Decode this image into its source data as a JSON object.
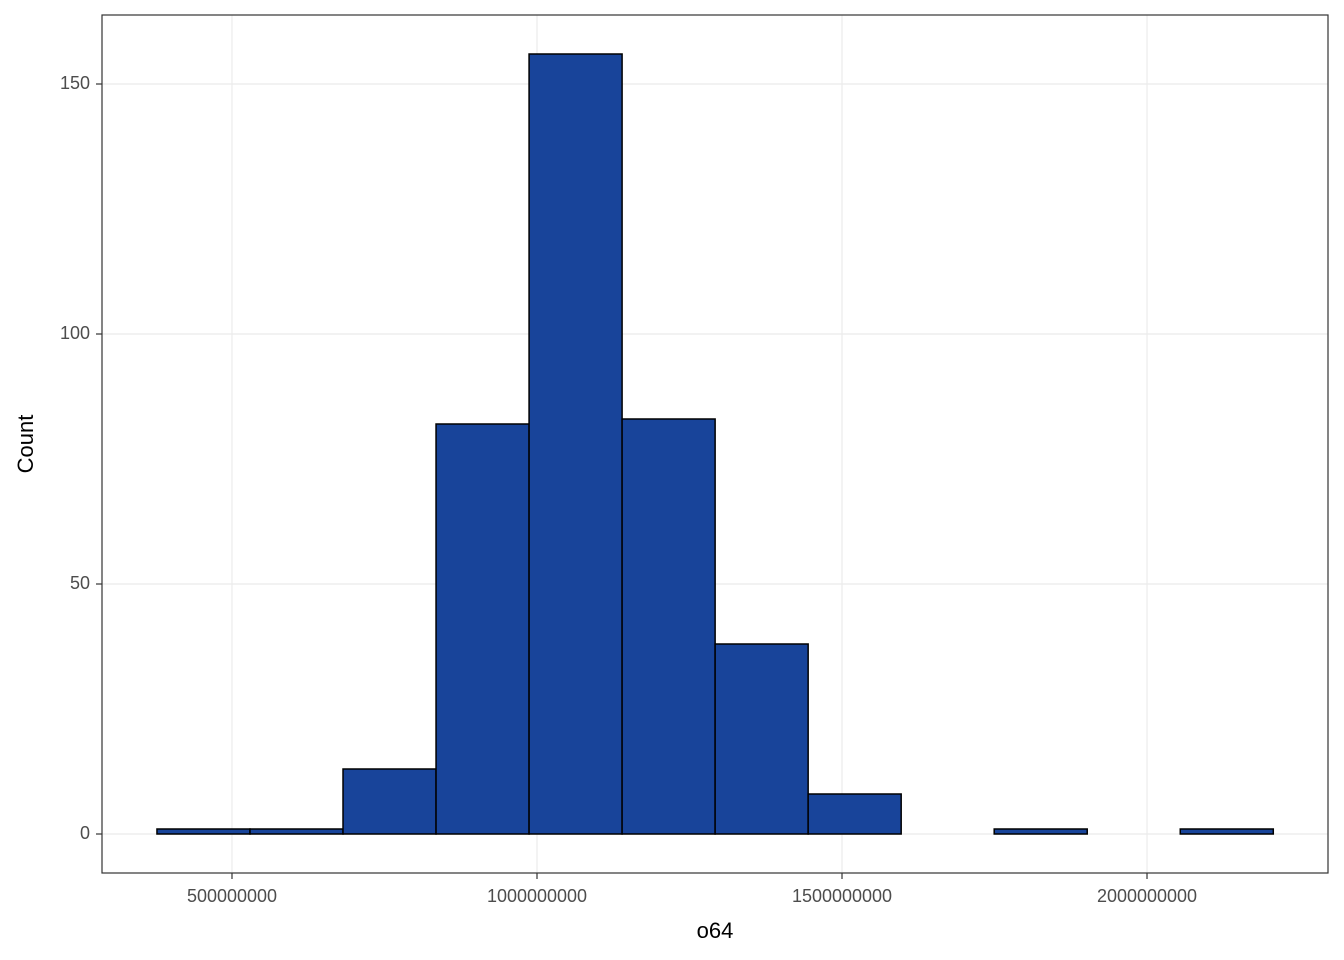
{
  "chart_data": {
    "type": "histogram",
    "x_label": "o64",
    "y_label": "Count",
    "bins": [
      377000000,
      529500000,
      682000000,
      834500000,
      987000000,
      1139500000,
      1292000000,
      1444500000,
      1597000000,
      1749500000,
      1902000000,
      2054500000,
      2207000000
    ],
    "counts": [
      1,
      1,
      13,
      82,
      156,
      83,
      38,
      8,
      0,
      1,
      0,
      1
    ],
    "color": "#18449a",
    "edge_color": "#000000",
    "xlim": [
      286900000,
      2296700000
    ],
    "xticks": [
      500000000,
      1000000000,
      1500000000,
      2000000000
    ],
    "ylim": [
      -7.8,
      163.8
    ],
    "yticks": [
      0,
      50,
      100,
      150
    ],
    "grid": true
  }
}
